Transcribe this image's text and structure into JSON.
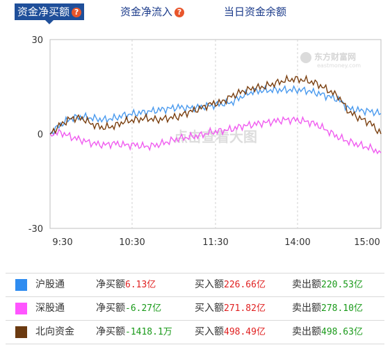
{
  "tabs": [
    {
      "label": "资金净买额",
      "active": true,
      "has_help": true
    },
    {
      "label": "资金净流入",
      "active": false,
      "has_help": true
    },
    {
      "label": "当日资金余额",
      "active": false,
      "has_help": false
    }
  ],
  "help_icon_glyph": "?",
  "watermark": {
    "logo_cn": "东方财富网",
    "logo_en": "eastmoney.com",
    "center_text": "点击查看大图"
  },
  "chart_data": {
    "type": "line",
    "x_ticks": [
      "9:30",
      "10:30",
      "11:30",
      "14:00",
      "15:00"
    ],
    "y_ticks": [
      "30",
      "0",
      "-30"
    ],
    "ylim": [
      -30,
      30
    ],
    "grid": true,
    "series": [
      {
        "name": "沪股通",
        "color": "#4a9aee",
        "values": [
          0,
          3,
          5,
          5.5,
          5,
          4.5,
          5,
          6,
          6.5,
          7,
          7.5,
          8,
          8.5,
          8.2,
          8.5,
          9,
          9.5,
          10,
          12,
          13.5,
          13.8,
          14,
          14,
          14,
          13.8,
          13,
          12,
          11,
          8,
          7.5,
          7.2,
          6.5
        ]
      },
      {
        "name": "深股通",
        "color": "#f05cf0",
        "values": [
          0,
          0.5,
          -1,
          -2,
          -3,
          -3.5,
          -3,
          -3.5,
          -3.5,
          -4,
          -3.5,
          -2.5,
          -1.5,
          -1,
          -0.5,
          0.5,
          1,
          1.5,
          2.5,
          3,
          3.5,
          4,
          4.5,
          4.5,
          4,
          3,
          1,
          -1,
          -2.5,
          -3.5,
          -4.5,
          -6
        ]
      },
      {
        "name": "北向资金",
        "color": "#7a3f0f",
        "values": [
          0,
          3,
          5,
          5,
          3,
          2,
          2.5,
          4,
          4.5,
          5,
          4.5,
          5,
          5.5,
          7,
          8,
          9.5,
          10,
          12,
          13.5,
          14.5,
          15,
          16,
          17,
          17.5,
          17,
          16,
          14,
          12,
          7,
          5,
          3.5,
          0
        ]
      }
    ]
  },
  "legend_rows": [
    {
      "color": "#2f8cf0",
      "name": "沪股通",
      "net_label": "净买额",
      "net_value": "6.13亿",
      "buy_label": "买入额",
      "buy_value": "226.66亿",
      "sell_label": "卖出额",
      "sell_value": "220.53亿"
    },
    {
      "color": "#ff55ff",
      "name": "深股通",
      "net_label": "净买额",
      "net_value": "-6.27亿",
      "buy_label": "买入额",
      "buy_value": "271.82亿",
      "sell_label": "卖出额",
      "sell_value": "278.10亿"
    },
    {
      "color": "#6b3a10",
      "name": "北向资金",
      "net_label": "净买额",
      "net_value": "-1418.1万",
      "buy_label": "买入额",
      "buy_value": "498.49亿",
      "sell_label": "卖出额",
      "sell_value": "498.63亿"
    }
  ]
}
